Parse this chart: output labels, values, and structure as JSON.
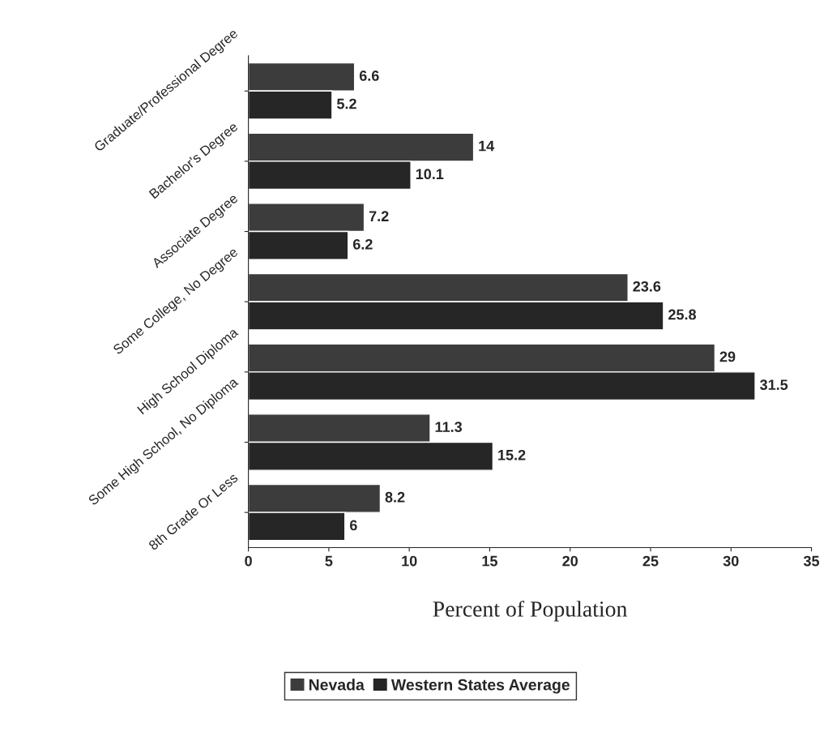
{
  "chart_data": {
    "type": "bar",
    "orientation": "horizontal",
    "xlabel": "Percent of Population",
    "categories": [
      "Graduate/Professional Degree",
      "Bachelor's Degree",
      "Associate Degree",
      "Some College, No Degree",
      "High School Diploma",
      "Some High School, No Diploma",
      "8th Grade Or Less"
    ],
    "series": [
      {
        "name": "Nevada",
        "color": "#3c3c3c",
        "values": [
          6.6,
          14,
          7.2,
          23.6,
          29,
          11.3,
          8.2
        ]
      },
      {
        "name": "Western States Average",
        "color": "#262626",
        "values": [
          5.2,
          10.1,
          6.2,
          25.8,
          31.5,
          15.2,
          6
        ]
      }
    ],
    "xlim": [
      0,
      35
    ],
    "xticks": [
      0,
      5,
      10,
      15,
      20,
      25,
      30,
      35
    ],
    "data_labels": true,
    "grid": false,
    "legend": "bottom"
  }
}
